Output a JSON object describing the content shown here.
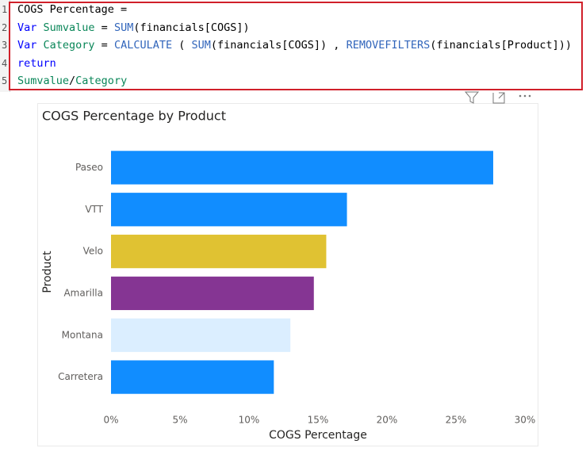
{
  "code": {
    "lines": [
      {
        "number": "1",
        "tokens": [
          {
            "text": "COGS Percentage =",
            "color": "#000000"
          }
        ]
      },
      {
        "number": "2",
        "tokens": [
          {
            "text": "Var",
            "color": "#0000ff"
          },
          {
            "text": " Sumvalue",
            "color": "#098658"
          },
          {
            "text": " = ",
            "color": "#000000"
          },
          {
            "text": "SUM",
            "color": "#3165bb"
          },
          {
            "text": "(financials[COGS])",
            "color": "#000000"
          }
        ]
      },
      {
        "number": "3",
        "tokens": [
          {
            "text": "Var",
            "color": "#0000ff"
          },
          {
            "text": " Category",
            "color": "#098658"
          },
          {
            "text": " = ",
            "color": "#000000"
          },
          {
            "text": "CALCULATE",
            "color": "#3165bb"
          },
          {
            "text": " ( ",
            "color": "#000000"
          },
          {
            "text": "SUM",
            "color": "#3165bb"
          },
          {
            "text": "(financials[COGS]) , ",
            "color": "#000000"
          },
          {
            "text": "REMOVEFILTERS",
            "color": "#3165bb"
          },
          {
            "text": "(financials[Product]))",
            "color": "#000000"
          }
        ]
      },
      {
        "number": "4",
        "tokens": [
          {
            "text": "return",
            "color": "#0000ff"
          }
        ]
      },
      {
        "number": "5",
        "tokens": [
          {
            "text": "Sumvalue",
            "color": "#098658"
          },
          {
            "text": "/",
            "color": "#000000"
          },
          {
            "text": "Category",
            "color": "#098658"
          }
        ]
      }
    ]
  },
  "chart_data": {
    "type": "hbar",
    "title": "COGS Percentage by Product",
    "x_label": "COGS Percentage",
    "y_label": "Product",
    "categories": [
      "Paseo",
      "VTT",
      "Velo",
      "Amarilla",
      "Montana",
      "Carretera"
    ],
    "values": [
      27.7,
      17.1,
      15.6,
      14.7,
      13.0,
      11.8
    ],
    "colors": [
      "#118dff",
      "#118dff",
      "#e0c232",
      "#853593",
      "#dbeeff",
      "#118dff"
    ],
    "xlim": [
      0,
      30
    ],
    "xticks": [
      {
        "value": 0,
        "label": "0%"
      },
      {
        "value": 5,
        "label": "5%"
      },
      {
        "value": 10,
        "label": "10%"
      },
      {
        "value": 15,
        "label": "15%"
      },
      {
        "value": 20,
        "label": "20%"
      },
      {
        "value": 25,
        "label": "25%"
      },
      {
        "value": 30,
        "label": "30%"
      }
    ],
    "grid": false
  }
}
